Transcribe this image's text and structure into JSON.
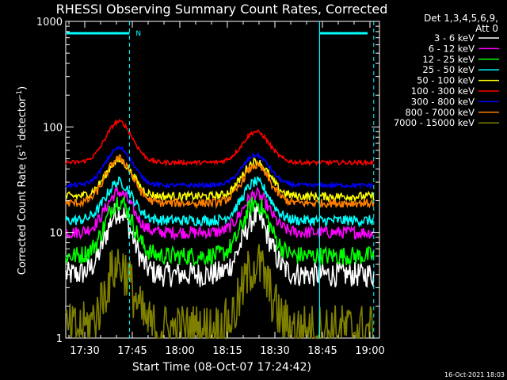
{
  "chart_data": {
    "type": "line",
    "title": "RHESSI Observing Summary Count Rates, Corrected",
    "xlabel": "Start Time (08-Oct-07 17:24:42)",
    "ylabel_main": "Corrected Count Rate (s",
    "ylabel_sup1": "-1",
    "ylabel_mid": " detector",
    "ylabel_sup2": "-1",
    "ylabel_end": ")",
    "y_scale": "log",
    "ylim": [
      1,
      1000
    ],
    "xlim_minutes": [
      17.4,
      19.05
    ],
    "x_ticks": [
      {
        "label": "17:30",
        "value": 17.5
      },
      {
        "label": "17:45",
        "value": 17.75
      },
      {
        "label": "18:00",
        "value": 18.0
      },
      {
        "label": "18:15",
        "value": 18.25
      },
      {
        "label": "18:30",
        "value": 18.5
      },
      {
        "label": "18:45",
        "value": 18.75
      },
      {
        "label": "19:00",
        "value": 19.0
      }
    ],
    "y_ticks": [
      {
        "label": "1",
        "value": 1
      },
      {
        "label": "10",
        "value": 10
      },
      {
        "label": "100",
        "value": 100
      },
      {
        "label": "1000",
        "value": 1000
      }
    ],
    "legend": {
      "placement": "right",
      "header1": "Det 1,3,4,5,6,9,",
      "header2": "Att 0"
    },
    "attenuator_flag": "N",
    "series": [
      {
        "name": "3 - 6 keV",
        "color": "#ffffff",
        "base": 4,
        "peak1": 16,
        "peak2": 14,
        "noise": 0.12
      },
      {
        "name": "6 - 12 keV",
        "color": "#ff00ff",
        "base": 10,
        "peak1": 24,
        "peak2": 23,
        "noise": 0.06
      },
      {
        "name": "12 - 25 keV",
        "color": "#00ff00",
        "base": 6,
        "peak1": 20,
        "peak2": 19,
        "noise": 0.09
      },
      {
        "name": "25 - 50 keV",
        "color": "#00ffff",
        "base": 13,
        "peak1": 30,
        "peak2": 30,
        "noise": 0.05
      },
      {
        "name": "50 - 100 keV",
        "color": "#ffff00",
        "base": 22,
        "peak1": 48,
        "peak2": 47,
        "noise": 0.04
      },
      {
        "name": "100 - 300 keV",
        "color": "#ff0000",
        "base": 46,
        "peak1": 112,
        "peak2": 90,
        "noise": 0.02
      },
      {
        "name": "300 - 800 keV",
        "color": "#0000ff",
        "base": 28,
        "peak1": 63,
        "peak2": 54,
        "noise": 0.02
      },
      {
        "name": "800 - 7000 keV",
        "color": "#ff8000",
        "base": 19,
        "peak1": 50,
        "peak2": 43,
        "noise": 0.04
      },
      {
        "name": "7000 - 15000 keV",
        "color": "#808000",
        "base": 1.2,
        "peak1": 5,
        "peak2": 5,
        "noise": 0.25
      }
    ],
    "peak_times": [
      17.68,
      18.4
    ],
    "gap_regions": [
      [
        17.4,
        17.48
      ],
      [
        18.72,
        19.05
      ]
    ],
    "vertical_markers": [
      17.735,
      18.735,
      19.02
    ],
    "footer_timestamp": "16-Oct-2021 18:03"
  }
}
